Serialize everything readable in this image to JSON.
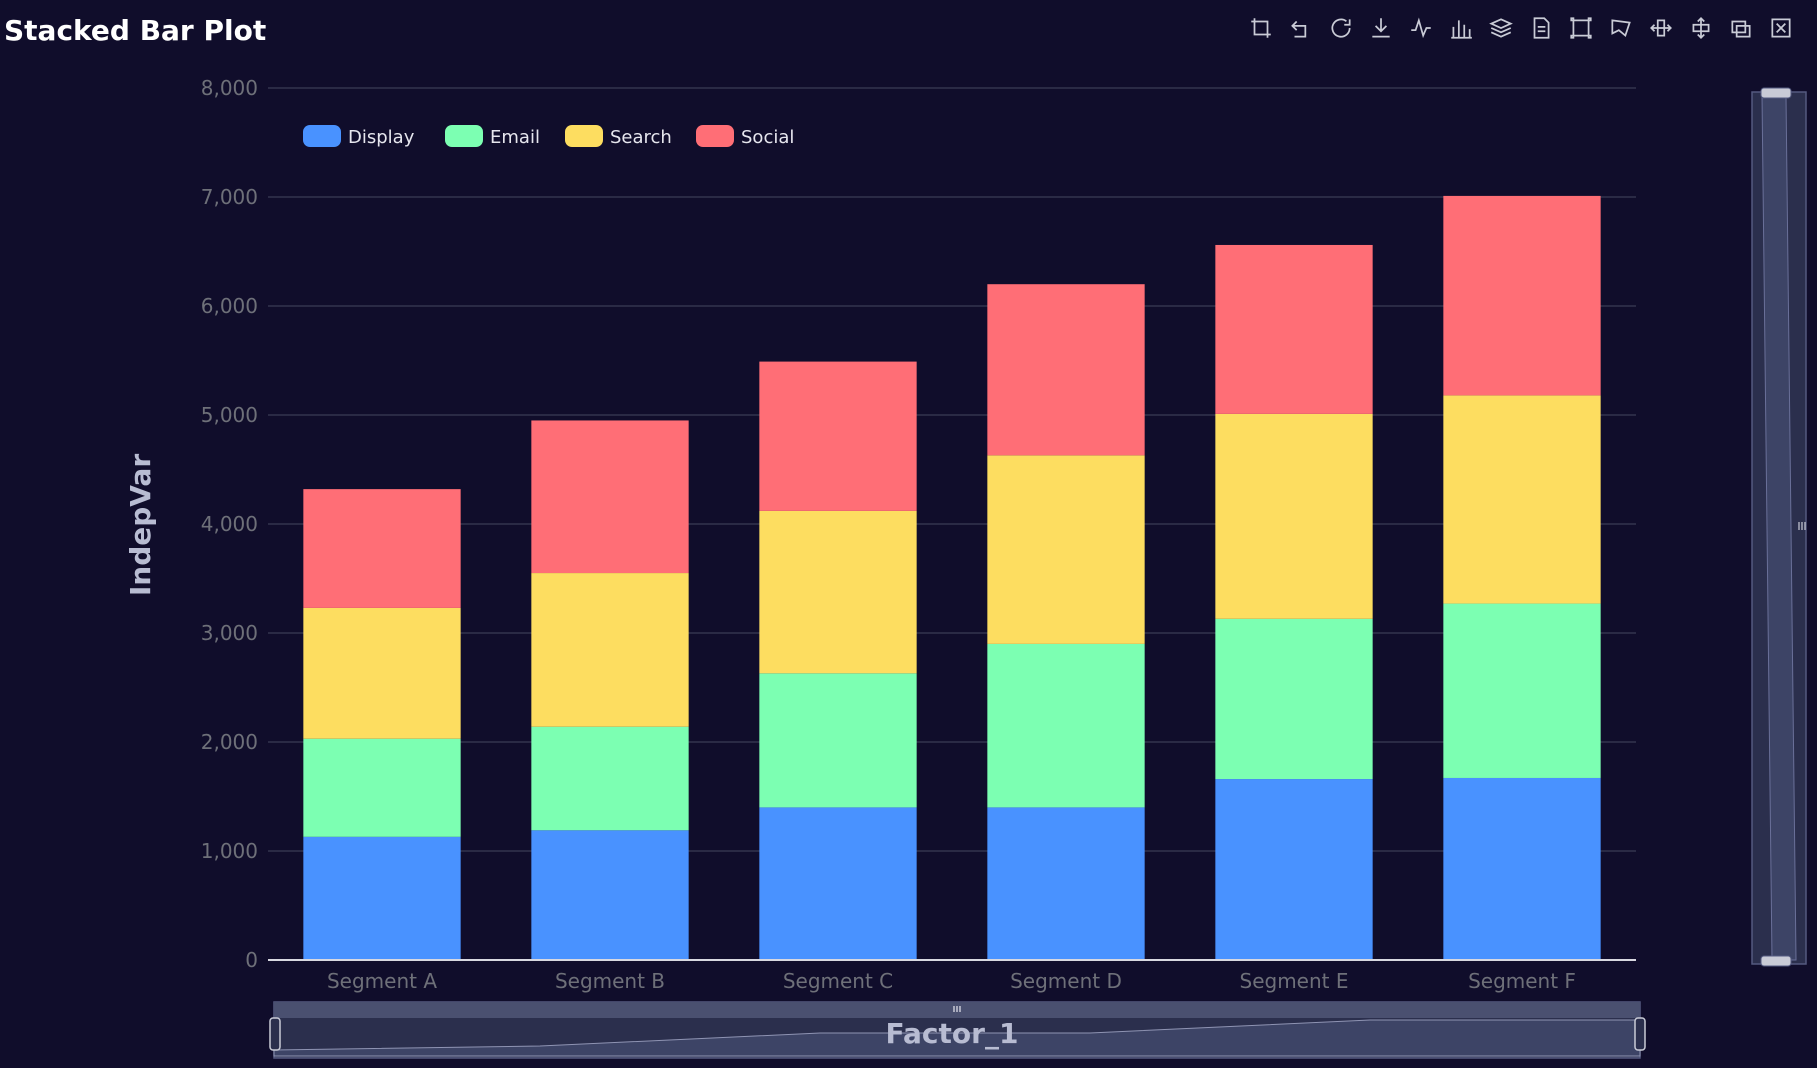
{
  "title": "Stacked Bar Plot",
  "toolbar": [
    {
      "name": "zoom-icon"
    },
    {
      "name": "zoom-reset-icon"
    },
    {
      "name": "restore-icon"
    },
    {
      "name": "download-icon"
    },
    {
      "name": "line-chart-icon"
    },
    {
      "name": "bar-chart-icon"
    },
    {
      "name": "stack-icon"
    },
    {
      "name": "data-view-icon"
    },
    {
      "name": "brush-rect-icon"
    },
    {
      "name": "brush-polygon-icon"
    },
    {
      "name": "brush-line-x-icon"
    },
    {
      "name": "brush-line-y-icon"
    },
    {
      "name": "brush-keep-icon"
    },
    {
      "name": "brush-clear-icon"
    }
  ],
  "colors": {
    "background": "#100d2b",
    "grid": "#3a3d55",
    "axis": "#d8d8e0",
    "tick": "#6e7079",
    "axis_title": "#b8bcd2",
    "zoom_fill": "#2b2f4d",
    "zoom_border": "#545a80"
  },
  "chart_data": {
    "type": "bar",
    "stacked": true,
    "title": "Stacked Bar Plot",
    "xlabel": "Factor_1",
    "ylabel": "IndepVar",
    "categories": [
      "Segment A",
      "Segment B",
      "Segment C",
      "Segment D",
      "Segment E",
      "Segment F"
    ],
    "ylim": [
      0,
      8000
    ],
    "yticks": [
      0,
      1000,
      2000,
      3000,
      4000,
      5000,
      6000,
      7000,
      8000
    ],
    "ytick_labels": [
      "0",
      "1,000",
      "2,000",
      "3,000",
      "4,000",
      "5,000",
      "6,000",
      "7,000",
      "8,000"
    ],
    "grid": true,
    "legend_position": "top-left",
    "series": [
      {
        "name": "Display",
        "color": "#4992ff",
        "values": [
          1130,
          1190,
          1400,
          1400,
          1660,
          1670
        ]
      },
      {
        "name": "Email",
        "color": "#7cffb2",
        "values": [
          900,
          950,
          1230,
          1500,
          1470,
          1600
        ]
      },
      {
        "name": "Search",
        "color": "#fddd60",
        "values": [
          1200,
          1410,
          1490,
          1730,
          1880,
          1910
        ]
      },
      {
        "name": "Social",
        "color": "#ff6e76",
        "values": [
          1090,
          1400,
          1370,
          1570,
          1550,
          1830
        ]
      }
    ]
  }
}
